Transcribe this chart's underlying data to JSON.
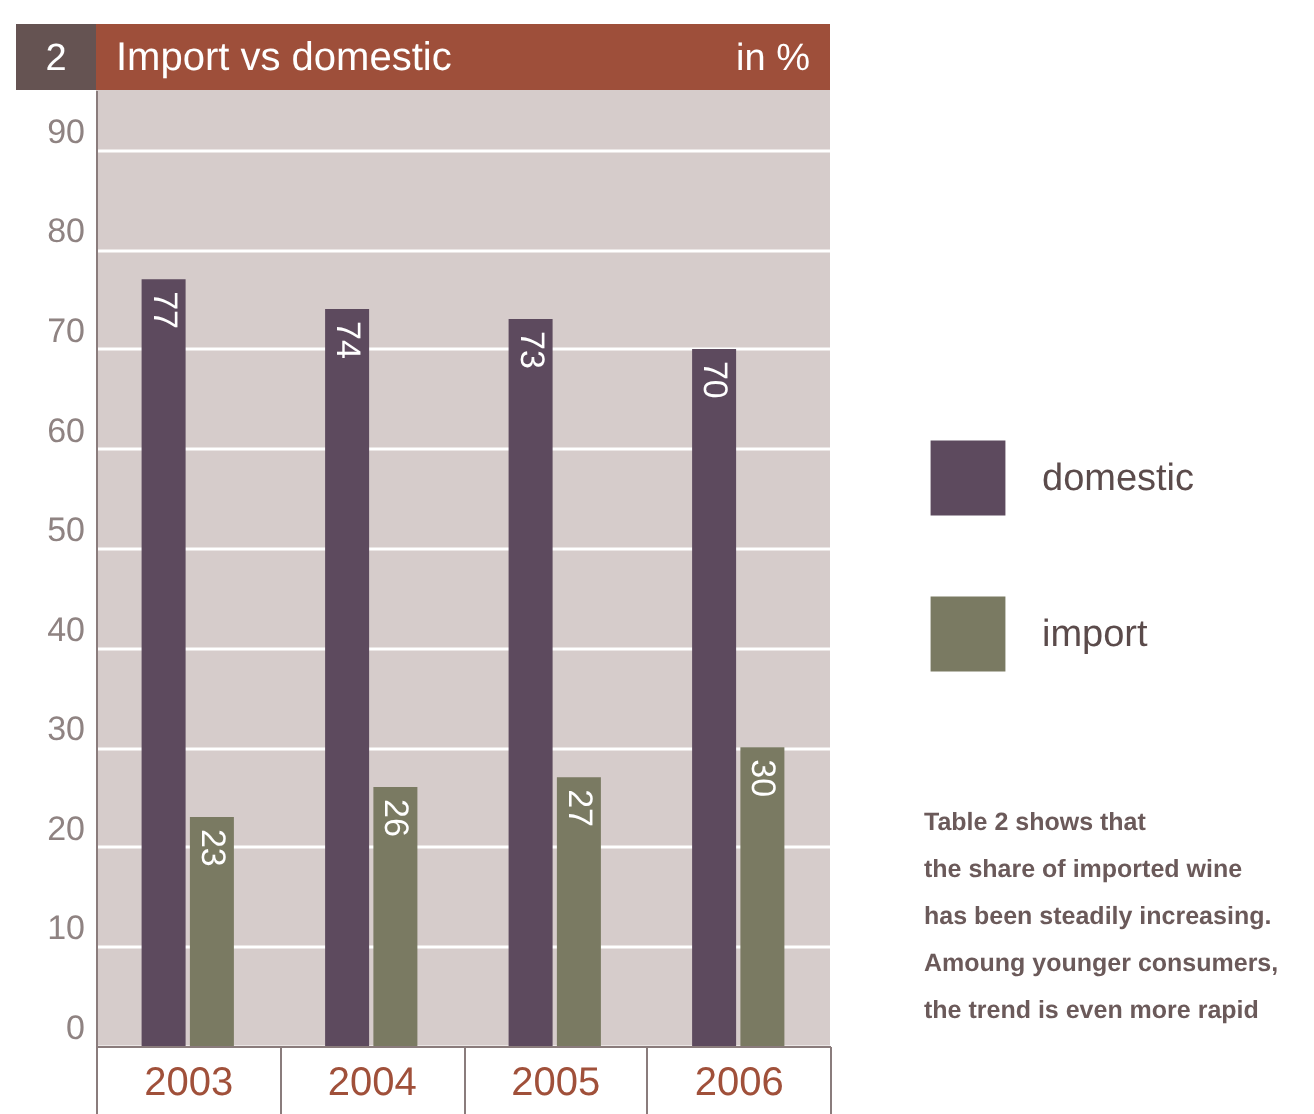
{
  "chart_data": {
    "type": "bar",
    "title": "Import vs domestic",
    "ylabel": "in %",
    "categories": [
      "2003",
      "2004",
      "2005",
      "2006"
    ],
    "series": [
      {
        "name": "domestic",
        "color": "#5d4a5e",
        "values": [
          77,
          74,
          73,
          70
        ]
      },
      {
        "name": "import",
        "color": "#7a7a62",
        "values": [
          23,
          26,
          27,
          30
        ]
      }
    ],
    "ylim": [
      0,
      96
    ],
    "yticks": [
      0,
      10,
      20,
      30,
      40,
      50,
      60,
      70,
      80,
      90
    ],
    "grid": "y",
    "data_labels": true,
    "legend": "right",
    "annotations": [
      "2",
      "Table 2 shows that\nthe share of imported wine\nhas been steadily increasing.\nAmoung younger consumers,\nthe trend is even more rapid"
    ]
  }
}
